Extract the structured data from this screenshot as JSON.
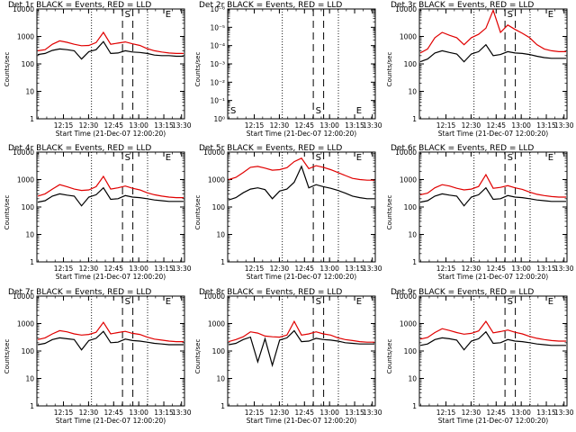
{
  "chart_data": [
    {
      "type": "line",
      "title": "Det 1r BLACK = Events, RED = LLD",
      "xlabel": "Start Time (21-Dec-07 12:00:20)",
      "ylabel": "Counts/sec",
      "xticks": [
        "12:15",
        "12:30",
        "12:45",
        "13:00",
        "13:15",
        "13:30"
      ],
      "yscale": "log",
      "yticks": [
        "1",
        "10",
        "100",
        "1000",
        "10000"
      ],
      "ylim": [
        1,
        12000
      ],
      "markers": [
        "S",
        "E"
      ],
      "x": [
        0,
        5,
        10,
        15,
        20,
        25,
        30,
        35,
        40,
        45,
        50,
        55,
        60,
        65,
        70,
        75,
        80,
        85,
        90,
        95,
        100
      ],
      "series": [
        {
          "name": "LLD",
          "color": "#e00000",
          "values": [
            300,
            330,
            520,
            690,
            610,
            520,
            460,
            470,
            600,
            1400,
            520,
            570,
            630,
            540,
            470,
            360,
            300,
            270,
            250,
            240,
            240
          ]
        },
        {
          "name": "Events",
          "color": "#000000",
          "values": [
            220,
            240,
            310,
            350,
            330,
            300,
            150,
            280,
            330,
            650,
            240,
            250,
            300,
            270,
            260,
            240,
            210,
            200,
            200,
            190,
            190
          ]
        }
      ]
    },
    {
      "type": "line",
      "title": "Det 2r BLACK = Events, RED = LLD",
      "xlabel": "Start Time (21-Dec-07 12:00:20)",
      "ylabel": "Counts/sec",
      "xticks": [
        "12:15",
        "12:30",
        "12:45",
        "13:00",
        "13:15",
        "13:30"
      ],
      "yscale": "log",
      "yticks": [
        "10⁰",
        "10⁻¹",
        "10⁻²",
        "10⁻³",
        "10⁻⁴",
        "10⁻⁵",
        "10⁻⁶"
      ],
      "markers": [
        "S",
        "E"
      ],
      "series": []
    },
    {
      "type": "line",
      "title": "Det 3r BLACK = Events, RED = LLD",
      "xlabel": "Start Time (21-Dec-07 12:00:20)",
      "ylabel": "Counts/sec",
      "xticks": [
        "12:15",
        "12:30",
        "12:45",
        "13:00",
        "13:15",
        "13:30"
      ],
      "yscale": "log",
      "yticks": [
        "1",
        "10",
        "100",
        "1000",
        "10000"
      ],
      "ylim": [
        1,
        12000
      ],
      "markers": [
        "S",
        "E"
      ],
      "x": [
        0,
        5,
        10,
        15,
        20,
        25,
        30,
        35,
        40,
        45,
        50,
        55,
        60,
        65,
        70,
        75,
        80,
        85,
        90,
        95,
        100
      ],
      "series": [
        {
          "name": "LLD",
          "color": "#e00000",
          "values": [
            250,
            350,
            900,
            1400,
            1100,
            900,
            500,
            900,
            1200,
            2000,
            9000,
            1400,
            2600,
            1800,
            1300,
            900,
            500,
            350,
            300,
            280,
            280
          ]
        },
        {
          "name": "Events",
          "color": "#000000",
          "values": [
            120,
            150,
            250,
            300,
            260,
            230,
            120,
            230,
            280,
            500,
            200,
            220,
            280,
            250,
            240,
            220,
            190,
            170,
            160,
            160,
            160
          ]
        }
      ]
    },
    {
      "type": "line",
      "title": "Det 4r BLACK = Events, RED = LLD",
      "xlabel": "Start Time (21-Dec-07 12:00:20)",
      "ylabel": "Counts/sec",
      "xticks": [
        "12:15",
        "12:30",
        "12:45",
        "13:00",
        "13:15",
        "13:30"
      ],
      "yscale": "log",
      "yticks": [
        "1",
        "10",
        "100",
        "1000",
        "10000"
      ],
      "ylim": [
        1,
        12000
      ],
      "markers": [
        "S",
        "E"
      ],
      "x": [
        0,
        5,
        10,
        15,
        20,
        25,
        30,
        35,
        40,
        45,
        50,
        55,
        60,
        65,
        70,
        75,
        80,
        85,
        90,
        95,
        100
      ],
      "series": [
        {
          "name": "LLD",
          "color": "#e00000",
          "values": [
            250,
            300,
            450,
            650,
            550,
            450,
            400,
            420,
            550,
            1300,
            450,
            500,
            580,
            480,
            420,
            330,
            280,
            250,
            230,
            220,
            220
          ]
        },
        {
          "name": "Events",
          "color": "#000000",
          "values": [
            150,
            170,
            250,
            300,
            270,
            250,
            110,
            230,
            280,
            500,
            190,
            200,
            260,
            230,
            220,
            200,
            180,
            170,
            160,
            160,
            160
          ]
        }
      ]
    },
    {
      "type": "line",
      "title": "Det 5r BLACK = Events, RED = LLD",
      "xlabel": "Start Time (21-Dec-07 12:00:20)",
      "ylabel": "Counts/sec",
      "xticks": [
        "12:15",
        "12:30",
        "12:45",
        "13:00",
        "13:15",
        "13:30"
      ],
      "yscale": "log",
      "yticks": [
        "1",
        "10",
        "100",
        "1000",
        "10000"
      ],
      "ylim": [
        1,
        12000
      ],
      "markers": [
        "S",
        "E"
      ],
      "x": [
        0,
        5,
        10,
        15,
        20,
        25,
        30,
        35,
        40,
        45,
        50,
        55,
        60,
        65,
        70,
        75,
        80,
        85,
        90,
        95,
        100
      ],
      "series": [
        {
          "name": "LLD",
          "color": "#e00000",
          "values": [
            1000,
            1200,
            1800,
            2800,
            3000,
            2600,
            2200,
            2300,
            2700,
            4500,
            6000,
            2500,
            3200,
            2800,
            2300,
            1800,
            1400,
            1100,
            1000,
            950,
            950
          ]
        },
        {
          "name": "Events",
          "color": "#000000",
          "values": [
            180,
            220,
            330,
            450,
            500,
            430,
            200,
            380,
            450,
            800,
            3000,
            500,
            650,
            550,
            480,
            400,
            320,
            250,
            220,
            200,
            200
          ]
        }
      ]
    },
    {
      "type": "line",
      "title": "Det 6r BLACK = Events, RED = LLD",
      "xlabel": "Start Time (21-Dec-07 12:00:20)",
      "ylabel": "Counts/sec",
      "xticks": [
        "12:15",
        "12:30",
        "12:45",
        "13:00",
        "13:15",
        "13:30"
      ],
      "yscale": "log",
      "yticks": [
        "1",
        "10",
        "100",
        "1000",
        "10000"
      ],
      "ylim": [
        1,
        12000
      ],
      "markers": [
        "S",
        "E"
      ],
      "x": [
        0,
        5,
        10,
        15,
        20,
        25,
        30,
        35,
        40,
        45,
        50,
        55,
        60,
        65,
        70,
        75,
        80,
        85,
        90,
        95,
        100
      ],
      "series": [
        {
          "name": "LLD",
          "color": "#e00000",
          "values": [
            280,
            320,
            500,
            650,
            580,
            480,
            420,
            450,
            560,
            1500,
            480,
            520,
            600,
            500,
            440,
            350,
            290,
            260,
            240,
            230,
            230
          ]
        },
        {
          "name": "Events",
          "color": "#000000",
          "values": [
            150,
            170,
            250,
            300,
            270,
            250,
            110,
            230,
            280,
            500,
            190,
            200,
            260,
            230,
            220,
            200,
            180,
            170,
            160,
            160,
            160
          ]
        }
      ]
    },
    {
      "type": "line",
      "title": "Det 7r BLACK = Events, RED = LLD",
      "xlabel": "Start Time (21-Dec-07 12:00:20)",
      "ylabel": "Counts/sec",
      "xticks": [
        "12:15",
        "12:30",
        "12:45",
        "13:00",
        "13:15",
        "13:30"
      ],
      "yscale": "log",
      "yticks": [
        "1",
        "10",
        "100",
        "1000",
        "10000"
      ],
      "ylim": [
        1,
        12000
      ],
      "markers": [
        "S",
        "E"
      ],
      "x": [
        0,
        5,
        10,
        15,
        20,
        25,
        30,
        35,
        40,
        45,
        50,
        55,
        60,
        65,
        70,
        75,
        80,
        85,
        90,
        95,
        100
      ],
      "series": [
        {
          "name": "LLD",
          "color": "#e00000",
          "values": [
            260,
            300,
            420,
            550,
            500,
            420,
            380,
            400,
            480,
            1100,
            420,
            470,
            520,
            440,
            400,
            320,
            270,
            250,
            230,
            220,
            220
          ]
        },
        {
          "name": "Events",
          "color": "#000000",
          "values": [
            170,
            190,
            260,
            300,
            280,
            260,
            110,
            240,
            290,
            520,
            200,
            210,
            270,
            240,
            230,
            210,
            190,
            180,
            170,
            170,
            170
          ]
        }
      ]
    },
    {
      "type": "line",
      "title": "Det 8r BLACK = Events, RED = LLD",
      "xlabel": "Start Time (21-Dec-07 12:00:20)",
      "ylabel": "Counts/sec",
      "xticks": [
        "12:15",
        "12:30",
        "12:45",
        "13:00",
        "13:15",
        "13:30"
      ],
      "yscale": "log",
      "yticks": [
        "1",
        "10",
        "100",
        "1000",
        "10000"
      ],
      "ylim": [
        1,
        12000
      ],
      "markers": [
        "S",
        "E"
      ],
      "x": [
        0,
        5,
        10,
        15,
        20,
        25,
        30,
        35,
        40,
        45,
        50,
        55,
        60,
        65,
        70,
        75,
        80,
        85,
        90,
        95,
        100
      ],
      "series": [
        {
          "name": "LLD",
          "color": "#e00000",
          "values": [
            220,
            260,
            330,
            500,
            450,
            350,
            330,
            320,
            380,
            1200,
            380,
            420,
            500,
            420,
            380,
            300,
            260,
            240,
            220,
            210,
            210
          ]
        },
        {
          "name": "Events",
          "color": "#000000",
          "values": [
            170,
            190,
            260,
            320,
            40,
            280,
            30,
            250,
            300,
            550,
            220,
            230,
            290,
            260,
            250,
            230,
            200,
            190,
            180,
            180,
            180
          ]
        }
      ]
    },
    {
      "type": "line",
      "title": "Det 9r BLACK = Events, RED = LLD",
      "xlabel": "Start Time (21-Dec-07 12:00:20)",
      "ylabel": "Counts/sec",
      "xticks": [
        "12:15",
        "12:30",
        "12:45",
        "13:00",
        "13:15",
        "13:30"
      ],
      "yscale": "log",
      "yticks": [
        "1",
        "10",
        "100",
        "1000",
        "10000"
      ],
      "ylim": [
        1,
        12000
      ],
      "markers": [
        "S",
        "E"
      ],
      "x": [
        0,
        5,
        10,
        15,
        20,
        25,
        30,
        35,
        40,
        45,
        50,
        55,
        60,
        65,
        70,
        75,
        80,
        85,
        90,
        95,
        100
      ],
      "series": [
        {
          "name": "LLD",
          "color": "#e00000",
          "values": [
            270,
            310,
            470,
            650,
            560,
            470,
            410,
            440,
            540,
            1200,
            460,
            510,
            580,
            480,
            420,
            340,
            290,
            260,
            240,
            230,
            230
          ]
        },
        {
          "name": "Events",
          "color": "#000000",
          "values": [
            160,
            180,
            260,
            300,
            280,
            250,
            110,
            230,
            280,
            500,
            190,
            200,
            260,
            230,
            220,
            200,
            180,
            170,
            160,
            160,
            160
          ]
        }
      ]
    }
  ]
}
